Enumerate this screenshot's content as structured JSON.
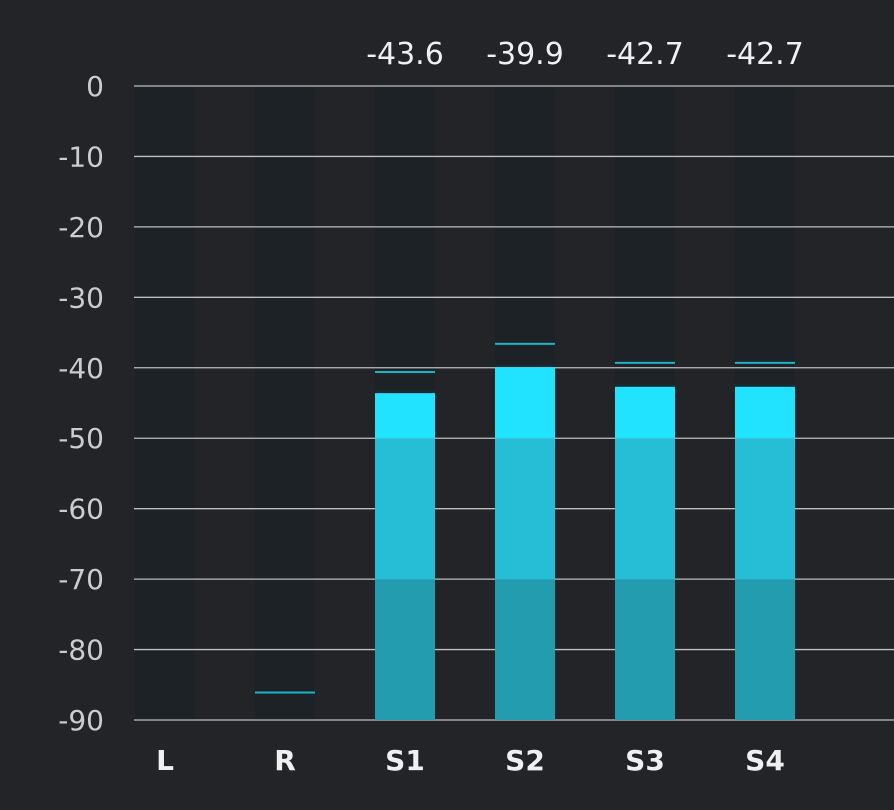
{
  "meter": {
    "scale_ticks": [
      "0",
      "-10",
      "-20",
      "-30",
      "-40",
      "-50",
      "-60",
      "-70",
      "-80",
      "-90"
    ],
    "scale_values": [
      0,
      -10,
      -20,
      -30,
      -40,
      -50,
      -60,
      -70,
      -80,
      -90
    ],
    "range_db": [
      -90,
      0
    ],
    "channels": [
      {
        "label": "L",
        "level_db": null,
        "peak_hold_db": null,
        "peak_readout": ""
      },
      {
        "label": "R",
        "level_db": null,
        "peak_hold_db": -86.1,
        "peak_readout": ""
      },
      {
        "label": "S1",
        "level_db": -43.6,
        "peak_hold_db": -40.6,
        "peak_readout": "-43.6"
      },
      {
        "label": "S2",
        "level_db": -39.9,
        "peak_hold_db": -36.6,
        "peak_readout": "-39.9"
      },
      {
        "label": "S3",
        "level_db": -42.7,
        "peak_hold_db": -39.3,
        "peak_readout": "-42.7"
      },
      {
        "label": "S4",
        "level_db": -42.7,
        "peak_hold_db": -39.3,
        "peak_readout": "-42.7"
      }
    ],
    "colors": {
      "background": "#222428",
      "track": "#1d2226",
      "gridline": "#d8dadc",
      "level_low": "#239cb0",
      "level_mid": "#26bed6",
      "level_high": "#22e3ff",
      "peak_hold": "#1fb2c8",
      "level_cap": "#1a2a30"
    }
  }
}
